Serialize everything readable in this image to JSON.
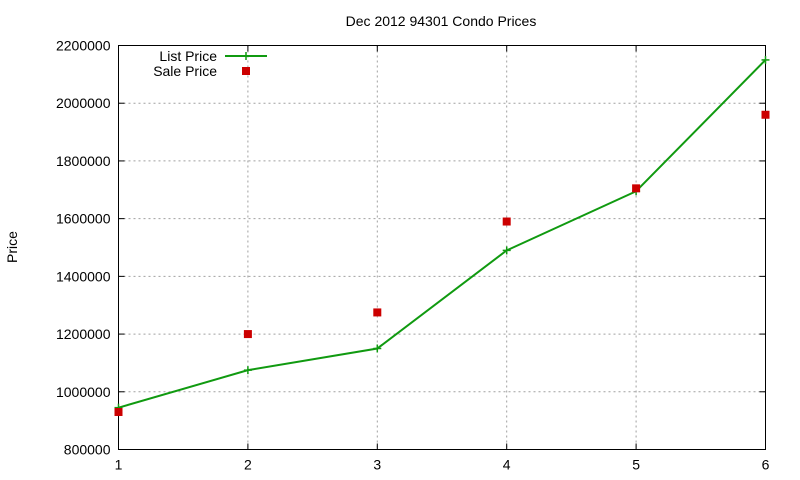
{
  "chart_data": {
    "type": "line",
    "title": "Dec 2012 94301 Condo Prices",
    "xlabel": "",
    "ylabel": "Price",
    "xlim": [
      1,
      6
    ],
    "ylim": [
      800000,
      2200000
    ],
    "x_ticks": [
      "1",
      "2",
      "3",
      "4",
      "5",
      "6"
    ],
    "y_ticks": [
      "800000",
      "1000000",
      "1200000",
      "1400000",
      "1600000",
      "1800000",
      "2000000",
      "2200000"
    ],
    "grid": true,
    "legend_position": "top-left",
    "series": [
      {
        "name": "List Price",
        "style": "line-with-plus-markers",
        "color": "#109a10",
        "x": [
          1,
          2,
          3,
          4,
          5,
          6
        ],
        "y": [
          945000,
          1075000,
          1150000,
          1490000,
          1695000,
          2150000
        ]
      },
      {
        "name": "Sale Price",
        "style": "square-markers",
        "color": "#cc0000",
        "x": [
          1,
          2,
          3,
          4,
          5,
          6
        ],
        "y": [
          930000,
          1200000,
          1275000,
          1590000,
          1705000,
          1960000
        ]
      }
    ]
  }
}
